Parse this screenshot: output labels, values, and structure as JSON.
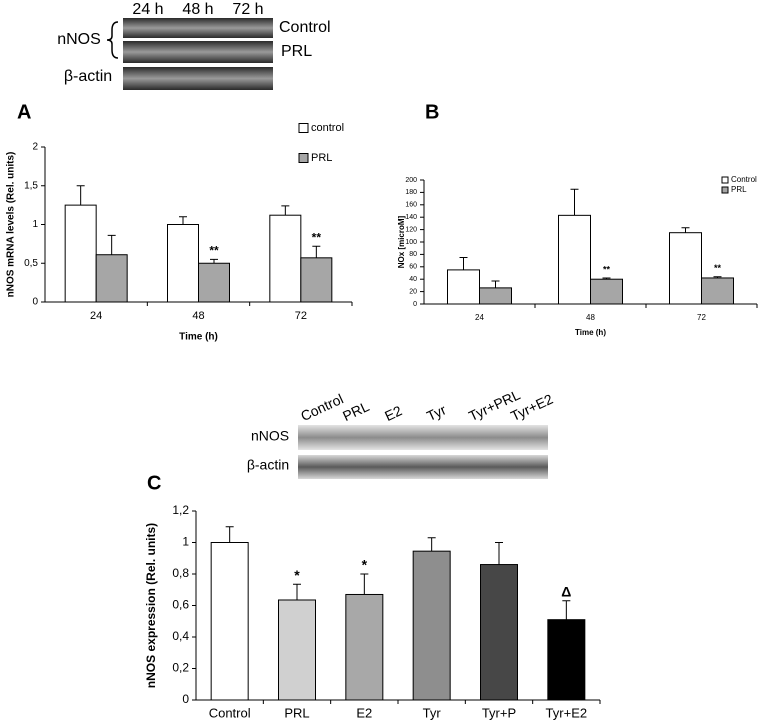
{
  "blots": [
    {
      "lanes": [
        "24 h",
        "48 h",
        "72 h"
      ],
      "group": "nNOS",
      "rows": [
        "Control",
        "PRL"
      ],
      "loading": "β-actin"
    },
    {
      "lanes": [
        "Control",
        "PRL",
        "E2",
        "Tyr",
        "Tyr+PRL",
        "Tyr+E2"
      ],
      "rows": [
        "nNOS",
        "β-actin"
      ]
    }
  ],
  "chart_data": [
    {
      "type": "bar",
      "panel": "A",
      "ylabel": "nNOS mRNA levels (Rel. units)",
      "xlabel": "Time (h)",
      "categories": [
        "24",
        "48",
        "72"
      ],
      "series": [
        {
          "name": "control",
          "color": "#ffffff",
          "values": [
            1.25,
            1.0,
            1.12
          ],
          "errors": [
            0.25,
            0.1,
            0.12
          ],
          "annotations": [
            null,
            null,
            null
          ]
        },
        {
          "name": "PRL",
          "color": "#a6a6a6",
          "values": [
            0.61,
            0.5,
            0.57
          ],
          "errors": [
            0.25,
            0.05,
            0.15
          ],
          "annotations": [
            null,
            "**",
            "**"
          ]
        }
      ],
      "ylim": [
        0,
        2
      ],
      "yticks": [
        0,
        {
          "value": 0.5,
          "label": "0,5"
        },
        1,
        {
          "value": 1.5,
          "label": "1,5"
        },
        2
      ]
    },
    {
      "type": "bar",
      "panel": "B",
      "ylabel": "NOx [microM]",
      "xlabel": "Time (h)",
      "categories": [
        "24",
        "48",
        "72"
      ],
      "series": [
        {
          "name": "Control",
          "color": "#ffffff",
          "values": [
            55,
            143,
            115
          ],
          "errors": [
            20,
            42,
            8
          ],
          "annotations": [
            null,
            null,
            null
          ]
        },
        {
          "name": "PRL",
          "color": "#a6a6a6",
          "values": [
            26,
            40,
            42
          ],
          "errors": [
            11,
            2,
            2
          ],
          "annotations": [
            null,
            "**",
            "**"
          ]
        }
      ],
      "ylim": [
        0,
        200
      ],
      "yticks": [
        0,
        20,
        40,
        60,
        80,
        100,
        120,
        140,
        160,
        180,
        200
      ]
    },
    {
      "type": "bar",
      "panel": "C",
      "ylabel": "nNOS expression (Rel. units)",
      "categories": [
        "Control",
        "PRL",
        "E2",
        "Tyr",
        "Tyr+P",
        "Tyr+E2"
      ],
      "series": [
        {
          "colors": [
            "#ffffff",
            "#d0d0d0",
            "#a8a8a8",
            "#8e8e8e",
            "#474747",
            "#000000"
          ],
          "values": [
            1.0,
            0.635,
            0.67,
            0.945,
            0.86,
            0.51
          ],
          "errors": [
            0.1,
            0.1,
            0.13,
            0.085,
            0.14,
            0.12
          ],
          "annotations": [
            null,
            "*",
            "*",
            null,
            null,
            "Δ"
          ]
        }
      ],
      "ylim": [
        0,
        1.2
      ],
      "yticks": [
        0,
        {
          "value": 0.2,
          "label": "0,2"
        },
        {
          "value": 0.4,
          "label": "0,4"
        },
        {
          "value": 0.6,
          "label": "0,6"
        },
        {
          "value": 0.8,
          "label": "0,8"
        },
        1,
        {
          "value": 1.2,
          "label": "1,2"
        }
      ]
    }
  ]
}
